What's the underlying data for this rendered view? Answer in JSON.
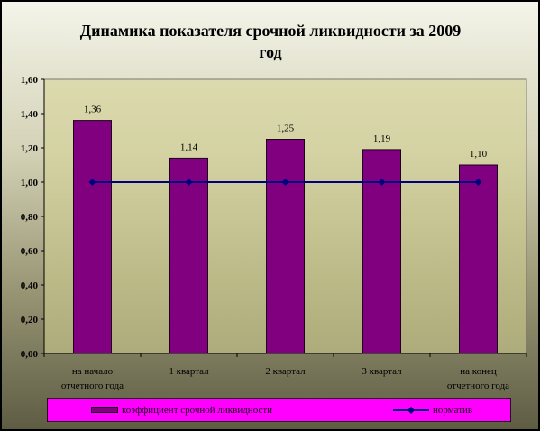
{
  "chart_data": {
    "type": "bar",
    "title": "Динамика показателя срочной ликвидности за 2009 год",
    "title_lines": [
      "Динамика показателя срочной ликвидности за 2009",
      "год"
    ],
    "categories": [
      [
        "на начало",
        "отчетного года"
      ],
      [
        "1 квартал"
      ],
      [
        "2 квартал"
      ],
      [
        "3 квартал"
      ],
      [
        "на конец",
        "отчетного года"
      ]
    ],
    "series": [
      {
        "name": "коэффициент срочной ликвидности",
        "type": "bar",
        "values": [
          1.36,
          1.14,
          1.25,
          1.19,
          1.1
        ],
        "labels": [
          "1,36",
          "1,14",
          "1,25",
          "1,19",
          "1,10"
        ]
      },
      {
        "name": "норматив",
        "type": "line",
        "values": [
          1.0,
          1.0,
          1.0,
          1.0,
          1.0
        ]
      }
    ],
    "ylim": [
      0,
      1.6
    ],
    "yticks": [
      "0,00",
      "0,20",
      "0,40",
      "0,60",
      "0,80",
      "1,00",
      "1,20",
      "1,40",
      "1,60"
    ],
    "grid": false,
    "legend_position": "bottom"
  },
  "colors": {
    "bar": "#800080",
    "bar_border": "#1a001a",
    "line": "#000080",
    "legend_bg": "#ff00ff"
  }
}
